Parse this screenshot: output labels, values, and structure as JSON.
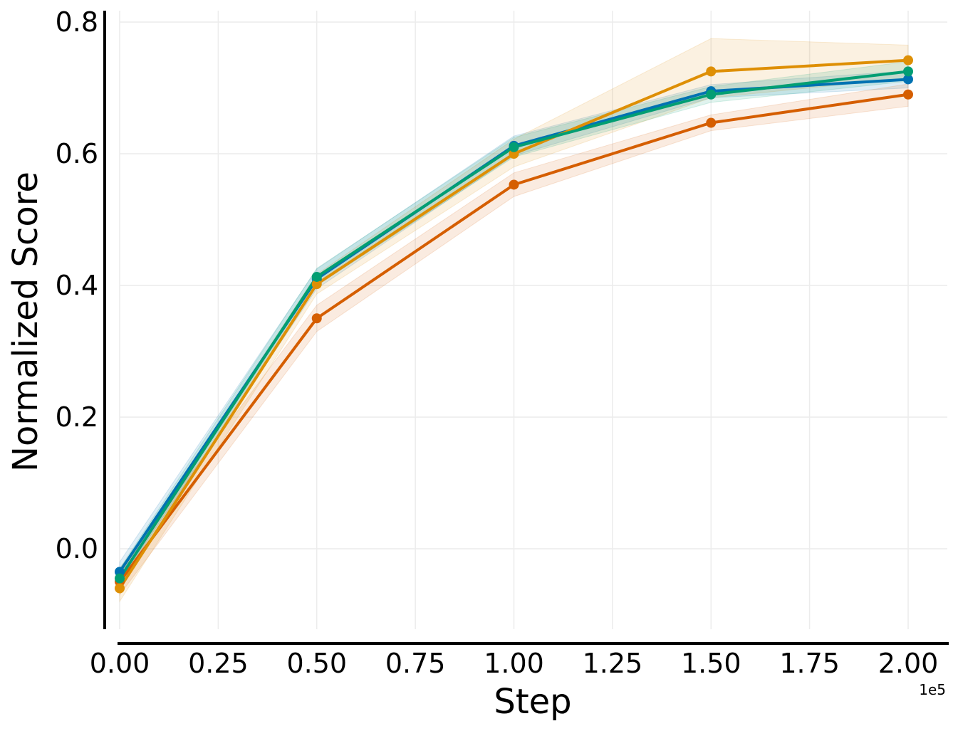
{
  "chart_data": {
    "type": "line",
    "title": "",
    "xlabel": "Step",
    "ylabel": "Normalized Score",
    "x_offset_label": "1e5",
    "x": [
      0,
      50000,
      100000,
      150000,
      200000
    ],
    "xlim": [
      0,
      210000
    ],
    "ylim": [
      -0.12,
      0.82
    ],
    "x_ticks": [
      0,
      25000,
      50000,
      75000,
      100000,
      125000,
      150000,
      175000,
      200000
    ],
    "x_tick_labels": [
      "0.00",
      "0.25",
      "0.50",
      "0.75",
      "1.00",
      "1.25",
      "1.50",
      "1.75",
      "2.00"
    ],
    "y_ticks": [
      0.0,
      0.2,
      0.4,
      0.6,
      0.8
    ],
    "y_tick_labels": [
      "0.0",
      "0.2",
      "0.4",
      "0.6",
      "0.8"
    ],
    "grid": true,
    "legend": "none",
    "series": [
      {
        "color": "#0072B2",
        "values": [
          -0.035,
          0.41,
          0.612,
          0.695,
          0.713
        ],
        "lower": [
          -0.05,
          0.395,
          0.597,
          0.685,
          0.7
        ],
        "upper": [
          -0.02,
          0.425,
          0.627,
          0.705,
          0.726
        ]
      },
      {
        "color": "#D55E00",
        "values": [
          -0.05,
          0.35,
          0.553,
          0.647,
          0.69
        ],
        "lower": [
          -0.07,
          0.33,
          0.535,
          0.635,
          0.672
        ],
        "upper": [
          -0.03,
          0.37,
          0.571,
          0.659,
          0.706
        ]
      },
      {
        "color": "#DE8F05",
        "values": [
          -0.06,
          0.402,
          0.6,
          0.725,
          0.742
        ],
        "lower": [
          -0.08,
          0.387,
          0.58,
          0.685,
          0.715
        ],
        "upper": [
          -0.04,
          0.417,
          0.622,
          0.775,
          0.765
        ]
      },
      {
        "color": "#029E73",
        "values": [
          -0.045,
          0.413,
          0.61,
          0.69,
          0.725
        ],
        "lower": [
          -0.06,
          0.4,
          0.595,
          0.678,
          0.71
        ],
        "upper": [
          -0.03,
          0.426,
          0.625,
          0.702,
          0.74
        ]
      }
    ]
  }
}
